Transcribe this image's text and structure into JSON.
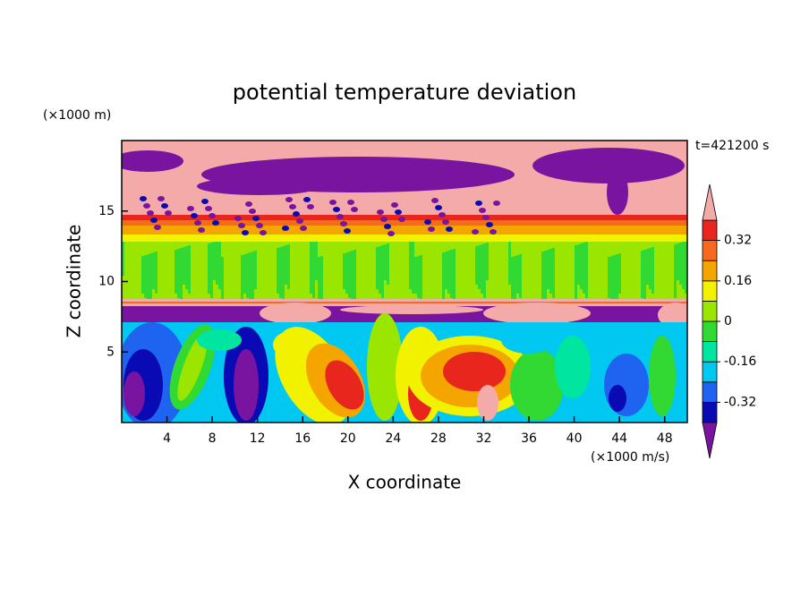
{
  "chart_data": {
    "type": "contour",
    "title": "potential temperature deviation",
    "y_unit": "(×1000 m)",
    "x_unit": "(×1000 m/s)",
    "xlabel": "X coordinate",
    "ylabel": "Z coordinate",
    "annotation": "t=421200 s",
    "xlim": [
      0,
      50
    ],
    "ylim": [
      0,
      20
    ],
    "xticks": [
      4,
      8,
      12,
      16,
      20,
      24,
      28,
      32,
      36,
      40,
      44,
      48
    ],
    "yticks": [
      5,
      10,
      15
    ],
    "colorbar": {
      "levels": [
        -0.4,
        -0.32,
        -0.24,
        -0.16,
        -0.08,
        0,
        0.08,
        0.16,
        0.24,
        0.32,
        0.4
      ],
      "colors": [
        "#0a0ab4",
        "#1e64f0",
        "#00c8f0",
        "#00e6a0",
        "#32d932",
        "#9be600",
        "#f2f200",
        "#f5a500",
        "#f56a1e",
        "#e8261e"
      ],
      "under_color": "#7814a0",
      "over_color": "#f5aaaa",
      "ticks": [
        -0.32,
        -0.16,
        0,
        0.16,
        0.32
      ]
    }
  }
}
